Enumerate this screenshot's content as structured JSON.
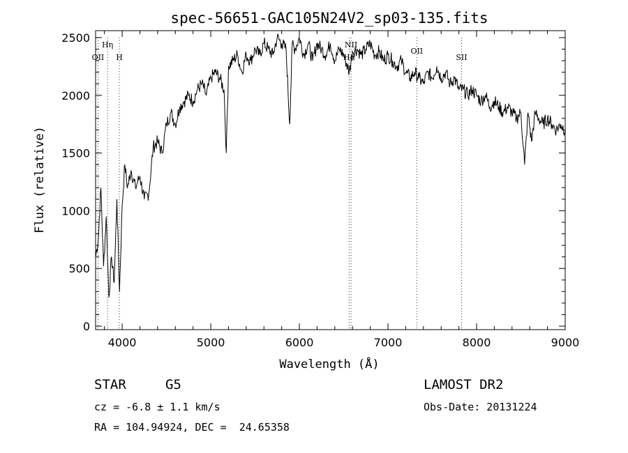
{
  "chart_data": {
    "type": "line",
    "title": "spec-56651-GAC105N24V2_sp03-135.fits",
    "xlabel": "Wavelength (Å)",
    "ylabel": "Flux (relative)",
    "xlim": [
      3700,
      9000
    ],
    "ylim": [
      -30,
      2560
    ],
    "x_ticks": [
      4000,
      5000,
      6000,
      7000,
      8000,
      9000
    ],
    "y_ticks": [
      0,
      500,
      1000,
      1500,
      2000,
      2500
    ],
    "grid": false,
    "series": [
      {
        "x": [
          3700,
          3730,
          3760,
          3790,
          3820,
          3850,
          3880,
          3910,
          3940,
          3970,
          4000,
          4030,
          4060,
          4100,
          4150,
          4200,
          4250,
          4300,
          4350,
          4400,
          4450,
          4500,
          4550,
          4600,
          4650,
          4700,
          4750,
          4800,
          4850,
          4900,
          4950,
          5000,
          5050,
          5100,
          5150,
          5175,
          5200,
          5250,
          5300,
          5350,
          5400,
          5450,
          5500,
          5550,
          5600,
          5650,
          5700,
          5750,
          5800,
          5850,
          5890,
          5920,
          5950,
          6000,
          6050,
          6100,
          6150,
          6200,
          6250,
          6300,
          6350,
          6400,
          6450,
          6500,
          6563,
          6600,
          6650,
          6700,
          6750,
          6800,
          6850,
          6900,
          6950,
          7000,
          7050,
          7100,
          7150,
          7200,
          7250,
          7300,
          7350,
          7400,
          7450,
          7500,
          7550,
          7600,
          7650,
          7700,
          7750,
          7800,
          7850,
          7900,
          7950,
          8000,
          8050,
          8100,
          8150,
          8200,
          8250,
          8300,
          8350,
          8400,
          8450,
          8500,
          8542,
          8580,
          8620,
          8662,
          8700,
          8750,
          8800,
          8850,
          8900,
          8950,
          9000
        ],
        "y": [
          600,
          750,
          1200,
          520,
          950,
          250,
          600,
          380,
          1100,
          300,
          1050,
          1400,
          1200,
          1350,
          1200,
          1300,
          1100,
          1150,
          1550,
          1600,
          1500,
          1750,
          1850,
          1750,
          1900,
          1950,
          2000,
          1950,
          2050,
          2100,
          2000,
          2150,
          2200,
          2150,
          2050,
          1500,
          2250,
          2300,
          2350,
          2200,
          2350,
          2300,
          2400,
          2350,
          2450,
          2400,
          2350,
          2500,
          2450,
          2400,
          1750,
          2450,
          2400,
          2500,
          2350,
          2450,
          2300,
          2450,
          2400,
          2350,
          2450,
          2300,
          2400,
          2350,
          2200,
          2380,
          2400,
          2350,
          2400,
          2450,
          2350,
          2380,
          2300,
          2350,
          2300,
          2250,
          2300,
          2200,
          2150,
          2200,
          2150,
          2100,
          2200,
          2150,
          2250,
          2150,
          2200,
          2100,
          2150,
          2050,
          2050,
          2000,
          2050,
          2000,
          1950,
          2000,
          1900,
          1950,
          1900,
          1850,
          1900,
          1850,
          1800,
          1850,
          1400,
          1850,
          1600,
          1850,
          1800,
          1750,
          1800,
          1750,
          1700,
          1750,
          1700
        ]
      }
    ],
    "line_markers": [
      {
        "label": "OII",
        "x": 3727,
        "row": 2
      },
      {
        "label": "Hη",
        "x": 3835,
        "row": 1
      },
      {
        "label": "H",
        "x": 3968,
        "row": 2
      },
      {
        "label": "NII",
        "x": 6583,
        "row": 1
      },
      {
        "label": "Hα",
        "x": 6563,
        "row": 2
      },
      {
        "label": "OII",
        "x": 7325,
        "row": 1.5
      },
      {
        "label": "SII",
        "x": 7830,
        "row": 2
      }
    ]
  },
  "info": {
    "object_class": "STAR",
    "subclass": "G5",
    "survey": "LAMOST DR2",
    "redshift": "cz = -6.8 ± 1.1 km/s",
    "obs_date": "Obs-Date: 20131224",
    "coords": "RA = 104.94924, DEC =  24.65358"
  }
}
